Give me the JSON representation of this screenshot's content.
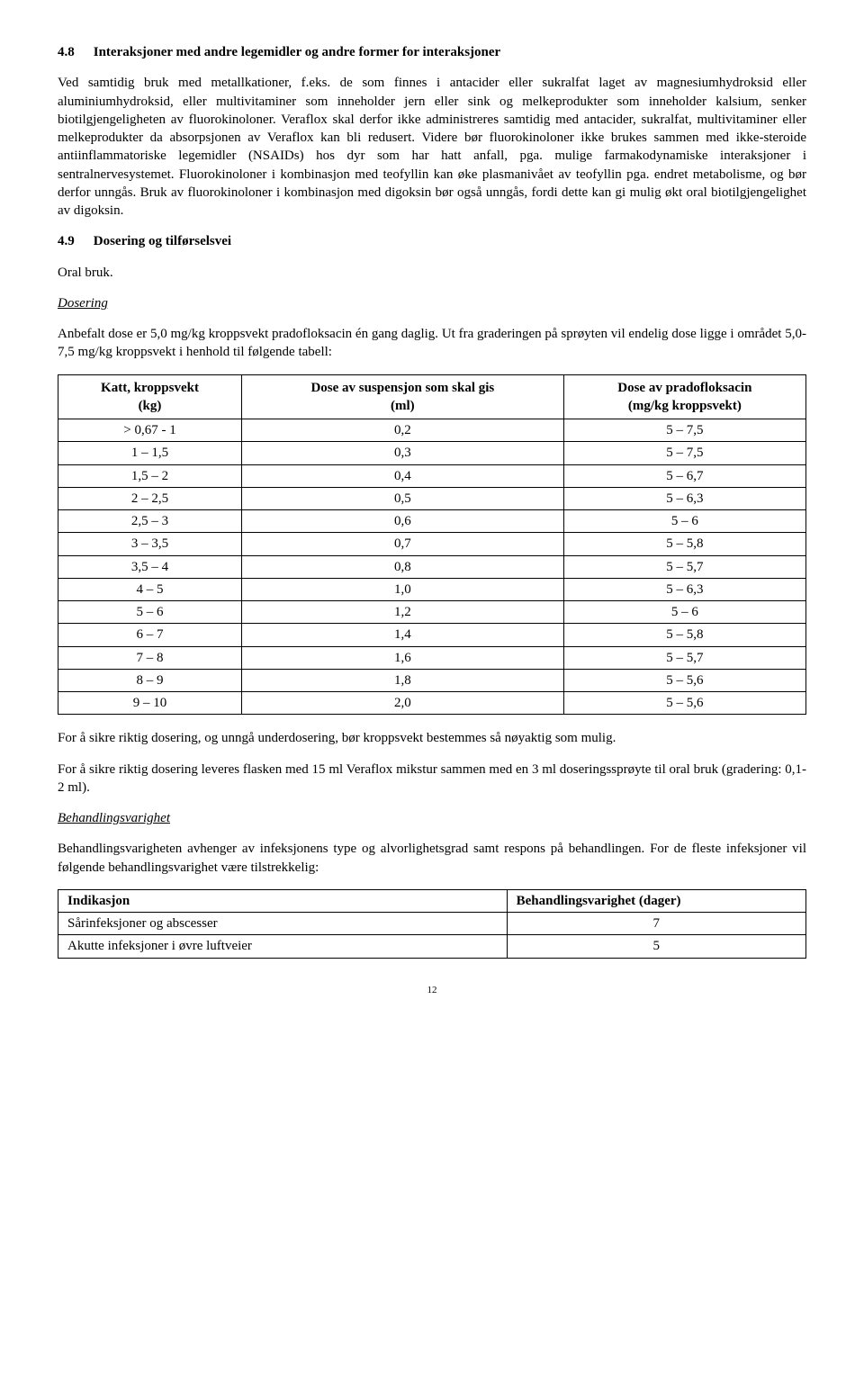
{
  "section48": {
    "number": "4.8",
    "title": "Interaksjoner med andre legemidler og andre former for interaksjoner",
    "p1": "Ved samtidig bruk med metallkationer, f.eks. de som finnes i antacider eller sukralfat laget av magnesiumhydroksid eller aluminiumhydroksid, eller multivitaminer som inneholder jern eller sink og melkeprodukter som inneholder kalsium, senker biotilgjengeligheten av fluorokinoloner. Veraflox skal derfor ikke administreres samtidig med antacider, sukralfat, multivitaminer eller melkeprodukter da absorpsjonen av Veraflox kan bli redusert. Videre bør fluorokinoloner ikke brukes sammen med ikke-steroide antiinflammatoriske legemidler (NSAIDs) hos dyr som har hatt anfall, pga. mulige farmakodynamiske interaksjoner i sentralnervesystemet. Fluorokinoloner i kombinasjon med teofyllin kan øke plasmanivået av teofyllin pga. endret metabolisme, og bør derfor unngås. Bruk av fluorokinoloner i kombinasjon med digoksin bør også unngås, fordi dette kan gi mulig økt oral biotilgjengelighet av digoksin."
  },
  "section49": {
    "number": "4.9",
    "title": "Dosering og tilførselsvei",
    "oral": "Oral bruk.",
    "dosingLabel": "Dosering",
    "p1": "Anbefalt dose er 5,0 mg/kg kroppsvekt pradofloksacin én gang daglig. Ut fra graderingen på sprøyten vil endelig dose ligge i området 5,0-7,5 mg/kg kroppsvekt i henhold til følgende tabell:",
    "headers": {
      "c1a": "Katt, kroppsvekt",
      "c1b": "(kg)",
      "c2a": "Dose av suspensjon som skal gis",
      "c2b": "(ml)",
      "c3a": "Dose av pradofloksacin",
      "c3b": "(mg/kg kroppsvekt)"
    },
    "rows": [
      {
        "w": "> 0,67 - 1",
        "ml": "0,2",
        "d": "5 – 7,5"
      },
      {
        "w": "1 – 1,5",
        "ml": "0,3",
        "d": "5 – 7,5"
      },
      {
        "w": "1,5 – 2",
        "ml": "0,4",
        "d": "5 – 6,7"
      },
      {
        "w": "2 – 2,5",
        "ml": "0,5",
        "d": "5 – 6,3"
      },
      {
        "w": "2,5 – 3",
        "ml": "0,6",
        "d": "5 – 6"
      },
      {
        "w": "3 – 3,5",
        "ml": "0,7",
        "d": "5 – 5,8"
      },
      {
        "w": "3,5 – 4",
        "ml": "0,8",
        "d": "5 – 5,7"
      },
      {
        "w": "4 – 5",
        "ml": "1,0",
        "d": "5 – 6,3"
      },
      {
        "w": "5 – 6",
        "ml": "1,2",
        "d": "5 – 6"
      },
      {
        "w": "6 – 7",
        "ml": "1,4",
        "d": "5 – 5,8"
      },
      {
        "w": "7 – 8",
        "ml": "1,6",
        "d": "5 – 5,7"
      },
      {
        "w": "8 – 9",
        "ml": "1,8",
        "d": "5 – 5,6"
      },
      {
        "w": "9 – 10",
        "ml": "2,0",
        "d": "5 – 5,6"
      }
    ],
    "p2": "For å sikre riktig dosering, og unngå underdosering, bør kroppsvekt bestemmes så nøyaktig som mulig.",
    "p3": "For å sikre riktig dosering leveres flasken med 15 ml Veraflox mikstur sammen med en 3 ml doseringssprøyte til oral bruk (gradering: 0,1-2 ml).",
    "durationLabel": "Behandlingsvarighet",
    "p4": "Behandlingsvarigheten avhenger av infeksjonens type og alvorlighetsgrad samt respons på behandlingen. For de fleste infeksjoner vil følgende behandlingsvarighet være tilstrekkelig:",
    "dheaders": {
      "c1": "Indikasjon",
      "c2": "Behandlingsvarighet (dager)"
    },
    "drows": [
      {
        "i": "Sårinfeksjoner og abscesser",
        "d": "7"
      },
      {
        "i": "Akutte infeksjoner i øvre luftveier",
        "d": "5"
      }
    ]
  },
  "pageNumber": "12"
}
